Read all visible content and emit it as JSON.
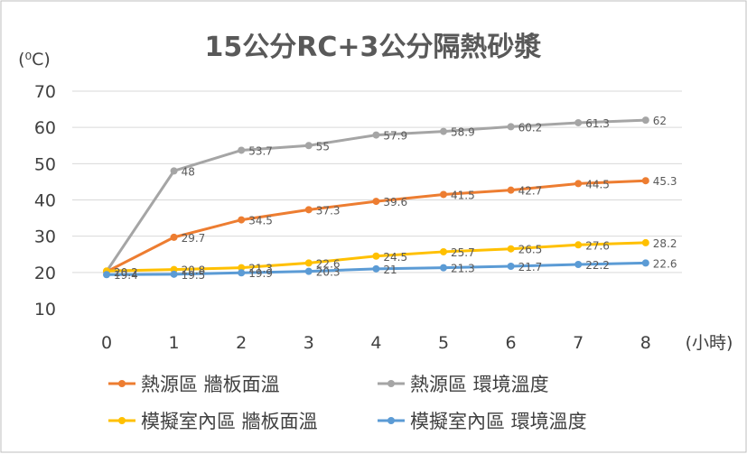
{
  "chart_data": {
    "type": "line",
    "title": "15公分RC+3公分隔熱砂漿",
    "ylabel": "(⁰C)",
    "xlabel": "(小時)",
    "categories": [
      "0",
      "1",
      "2",
      "3",
      "4",
      "5",
      "6",
      "7",
      "8"
    ],
    "ylim": [
      10,
      70
    ],
    "yticks": [
      10,
      20,
      30,
      40,
      50,
      60,
      70
    ],
    "grid": true,
    "legend_position": "bottom",
    "series": [
      {
        "name": "熱源區 牆板面溫",
        "color": "#ED7D31",
        "values": [
          20.2,
          29.7,
          34.5,
          37.3,
          39.6,
          41.5,
          42.7,
          44.5,
          45.3
        ],
        "labels": [
          "20.2",
          "29.7",
          "34.5",
          "37.3",
          "39.6",
          "41.5",
          "42.7",
          "44.5",
          "45.3"
        ]
      },
      {
        "name": "熱源區 環境溫度",
        "color": "#A5A5A5",
        "values": [
          20.3,
          48,
          53.7,
          55,
          57.9,
          58.9,
          60.2,
          61.3,
          62
        ],
        "labels": [
          "",
          "48",
          "53.7",
          "55",
          "57.9",
          "58.9",
          "60.2",
          "61.3",
          "62"
        ]
      },
      {
        "name": "模擬室內區 牆板面溫",
        "color": "#FFC000",
        "values": [
          20.4,
          20.8,
          21.3,
          22.6,
          24.5,
          25.7,
          26.5,
          27.6,
          28.2
        ],
        "labels": [
          "",
          "20.8",
          "21.3",
          "22.6",
          "24.5",
          "25.7",
          "26.5",
          "27.6",
          "28.2"
        ]
      },
      {
        "name": "模擬室內區 環境溫度",
        "color": "#5B9BD5",
        "values": [
          19.4,
          19.5,
          19.9,
          20.3,
          21,
          21.3,
          21.7,
          22.2,
          22.6
        ],
        "labels": [
          "19.4",
          "19.5",
          "19.9",
          "20.3",
          "21",
          "21.3",
          "21.7",
          "22.2",
          "22.6"
        ]
      }
    ]
  },
  "colors": {
    "grid": "#D9D9D9",
    "border": "#BFBFBF",
    "text": "#404040",
    "title": "#595959"
  }
}
